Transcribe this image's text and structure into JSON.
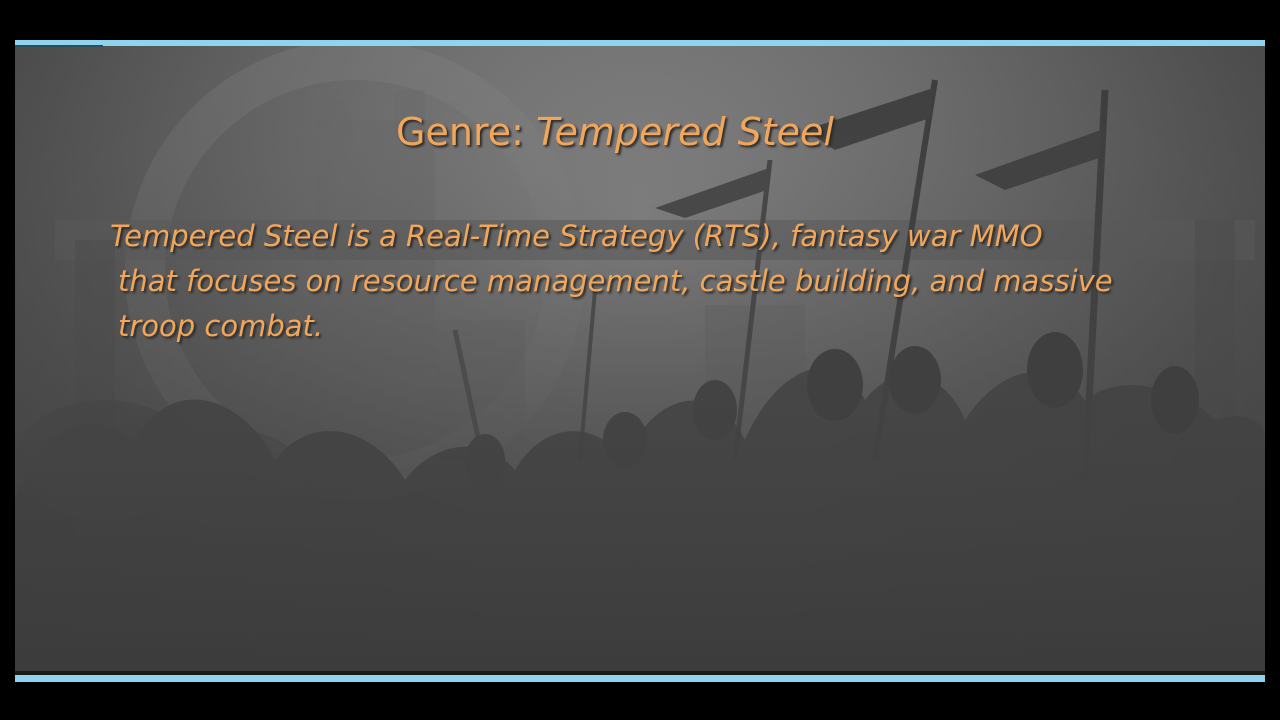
{
  "slide": {
    "title_prefix": "Genre: ",
    "title_name": "Tempered Steel",
    "body_lines": [
      "Tempered Steel is a Real-Time Strategy (RTS), fantasy war MMO",
      "that focuses on resource management, castle building, and massive",
      "troop combat."
    ]
  },
  "colors": {
    "text_accent": "#f2a65a",
    "frame_bar": "#8fd3ee",
    "background": "#000000"
  },
  "icons": {
    "background_art": "army-silhouette-with-banners"
  }
}
